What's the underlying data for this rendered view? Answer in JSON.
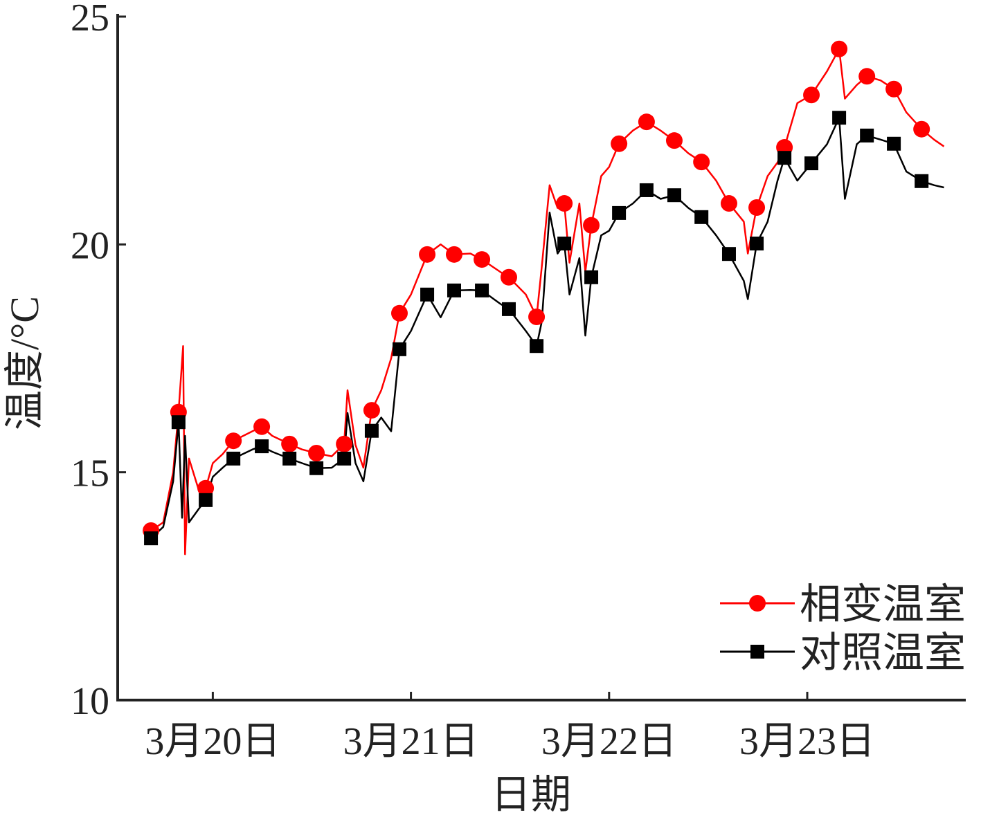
{
  "chart_data": {
    "type": "line",
    "xlabel": "日期",
    "ylabel": "温度/°C",
    "xlim": [
      19.52,
      23.8
    ],
    "ylim": [
      10,
      25
    ],
    "xticks": [
      {
        "value": 20,
        "label": "3月20日"
      },
      {
        "value": 21,
        "label": "3月21日"
      },
      {
        "value": 22,
        "label": "3月22日"
      },
      {
        "value": 23,
        "label": "3月23日"
      }
    ],
    "yticks": [
      10,
      15,
      20,
      25
    ],
    "legend": "lower right",
    "series": [
      {
        "name": "相变温室",
        "color": "#ff0000",
        "marker": "circle",
        "x": [
          19.66,
          19.688,
          19.75,
          19.8,
          19.827,
          19.85,
          19.86,
          19.88,
          19.93,
          19.964,
          20.0,
          20.05,
          20.104,
          20.2,
          20.247,
          20.3,
          20.387,
          20.45,
          20.523,
          20.6,
          20.663,
          20.68,
          20.72,
          20.76,
          20.802,
          20.85,
          20.9,
          20.942,
          21.0,
          21.082,
          21.15,
          21.218,
          21.3,
          21.358,
          21.45,
          21.494,
          21.58,
          21.634,
          21.66,
          21.7,
          21.74,
          21.774,
          21.8,
          21.85,
          21.88,
          21.91,
          21.96,
          22.0,
          22.05,
          22.12,
          22.189,
          22.26,
          22.329,
          22.4,
          22.466,
          22.54,
          22.605,
          22.68,
          22.7,
          22.745,
          22.8,
          22.85,
          22.885,
          22.95,
          23.021,
          23.1,
          23.161,
          23.19,
          23.25,
          23.301,
          23.37,
          23.437,
          23.5,
          23.577,
          23.64,
          23.69
        ],
        "values": [
          13.6,
          13.72,
          13.9,
          15.0,
          16.32,
          17.77,
          13.2,
          15.3,
          14.6,
          14.65,
          15.2,
          15.4,
          15.69,
          15.9,
          16.0,
          15.8,
          15.62,
          15.5,
          15.42,
          15.35,
          15.62,
          16.8,
          15.6,
          15.1,
          16.36,
          16.8,
          17.5,
          18.49,
          18.9,
          19.78,
          20.0,
          19.78,
          19.8,
          19.67,
          19.4,
          19.28,
          18.9,
          18.41,
          19.5,
          21.3,
          20.8,
          20.9,
          19.6,
          20.9,
          19.4,
          20.42,
          21.5,
          21.7,
          22.21,
          22.5,
          22.69,
          22.5,
          22.28,
          22.0,
          21.81,
          21.4,
          20.9,
          20.5,
          19.8,
          20.81,
          21.5,
          21.8,
          22.13,
          23.1,
          23.28,
          23.8,
          24.29,
          23.2,
          23.5,
          23.69,
          23.6,
          23.41,
          22.9,
          22.53,
          22.3,
          22.15
        ],
        "markers": {
          "x": [
            19.688,
            19.827,
            19.964,
            20.104,
            20.247,
            20.387,
            20.523,
            20.663,
            20.802,
            20.942,
            21.082,
            21.218,
            21.358,
            21.494,
            21.634,
            21.774,
            21.91,
            22.05,
            22.189,
            22.329,
            22.466,
            22.605,
            22.745,
            22.885,
            23.021,
            23.161,
            23.301,
            23.437,
            23.577
          ],
          "values": [
            13.72,
            16.32,
            14.65,
            15.69,
            16.0,
            15.62,
            15.42,
            15.62,
            16.36,
            18.49,
            19.78,
            19.78,
            19.67,
            19.28,
            18.41,
            20.9,
            20.42,
            22.21,
            22.69,
            22.28,
            21.81,
            20.9,
            20.81,
            22.13,
            23.28,
            24.29,
            23.69,
            23.41,
            22.53
          ]
        }
      },
      {
        "name": "对照温室",
        "color": "#000000",
        "marker": "square",
        "x": [
          19.66,
          19.688,
          19.75,
          19.8,
          19.827,
          19.845,
          19.86,
          19.88,
          19.93,
          19.964,
          20.0,
          20.05,
          20.104,
          20.2,
          20.247,
          20.3,
          20.387,
          20.45,
          20.523,
          20.6,
          20.663,
          20.68,
          20.72,
          20.76,
          20.802,
          20.85,
          20.9,
          20.942,
          21.0,
          21.082,
          21.15,
          21.218,
          21.3,
          21.358,
          21.45,
          21.494,
          21.58,
          21.634,
          21.66,
          21.7,
          21.74,
          21.774,
          21.8,
          21.85,
          21.88,
          21.91,
          21.96,
          22.0,
          22.05,
          22.12,
          22.189,
          22.26,
          22.329,
          22.4,
          22.466,
          22.54,
          22.605,
          22.68,
          22.7,
          22.745,
          22.8,
          22.85,
          22.885,
          22.95,
          23.021,
          23.1,
          23.161,
          23.19,
          23.25,
          23.301,
          23.37,
          23.437,
          23.5,
          23.577,
          23.64,
          23.69
        ],
        "values": [
          13.5,
          13.55,
          13.8,
          14.8,
          16.1,
          14.0,
          15.8,
          13.9,
          14.2,
          14.39,
          14.9,
          15.1,
          15.3,
          15.5,
          15.57,
          15.45,
          15.3,
          15.2,
          15.09,
          15.1,
          15.3,
          16.3,
          15.2,
          14.8,
          15.91,
          16.2,
          15.9,
          17.7,
          18.1,
          18.9,
          18.4,
          18.99,
          19.0,
          18.99,
          18.7,
          18.58,
          18.1,
          17.77,
          18.3,
          20.7,
          19.8,
          20.02,
          18.9,
          19.7,
          18.0,
          19.28,
          20.2,
          20.3,
          20.69,
          20.9,
          21.19,
          21.0,
          21.08,
          20.8,
          20.6,
          20.2,
          19.79,
          19.2,
          18.8,
          20.02,
          20.5,
          21.4,
          21.9,
          21.4,
          21.78,
          22.2,
          22.78,
          21.0,
          22.2,
          22.39,
          22.3,
          22.21,
          21.6,
          21.39,
          21.3,
          21.25
        ],
        "markers": {
          "x": [
            19.688,
            19.827,
            19.964,
            20.104,
            20.247,
            20.387,
            20.523,
            20.663,
            20.802,
            20.942,
            21.082,
            21.218,
            21.358,
            21.494,
            21.634,
            21.774,
            21.91,
            22.05,
            22.189,
            22.329,
            22.466,
            22.605,
            22.745,
            22.885,
            23.021,
            23.161,
            23.301,
            23.437,
            23.577
          ],
          "values": [
            13.55,
            16.1,
            14.39,
            15.3,
            15.57,
            15.3,
            15.09,
            15.3,
            15.91,
            17.7,
            18.9,
            18.99,
            18.99,
            18.58,
            17.77,
            20.02,
            19.28,
            20.69,
            21.19,
            21.08,
            20.6,
            19.79,
            20.02,
            21.9,
            21.78,
            22.78,
            22.39,
            22.21,
            21.39
          ]
        }
      }
    ]
  }
}
